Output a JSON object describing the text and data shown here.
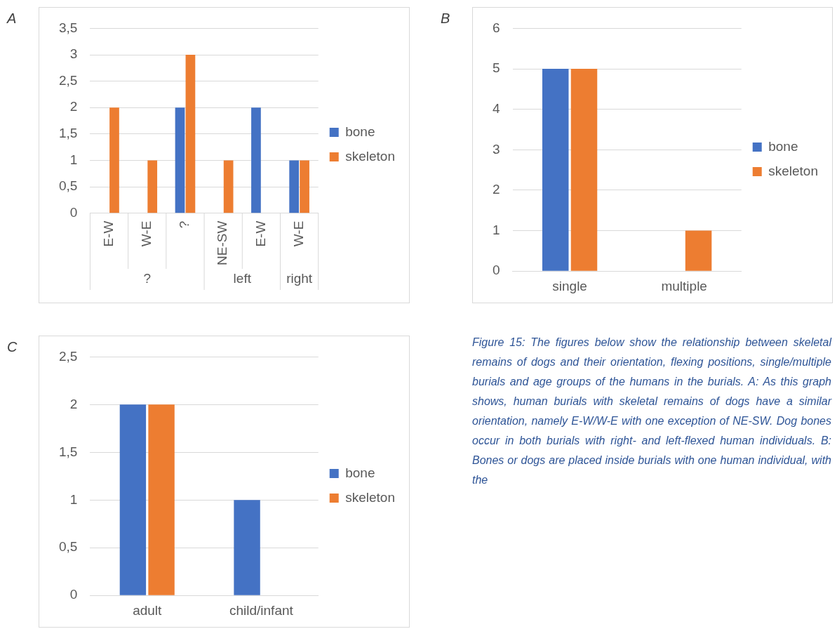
{
  "chart_data": [
    {
      "type": "bar",
      "title": "A",
      "categories": [
        "E-W",
        "W-E",
        "?",
        "NE-SW",
        "E-W",
        "W-E"
      ],
      "series": [
        {
          "name": "bone",
          "color": "#4472c4",
          "values": [
            null,
            null,
            2,
            null,
            2,
            1
          ]
        },
        {
          "name": "skeleton",
          "color": "#ed7d31",
          "values": [
            2,
            1,
            3,
            1,
            null,
            1
          ]
        }
      ],
      "ylim": [
        0,
        3.5
      ],
      "yticks": [
        0,
        {
          "value": 0.5,
          "label": "0,5"
        },
        1,
        {
          "value": 1.5,
          "label": "1,5"
        },
        2,
        {
          "value": 2.5,
          "label": "2,5"
        },
        3,
        {
          "value": 3.5,
          "label": "3,5"
        }
      ],
      "grid": "y",
      "legend": "right",
      "annotations": [
        "?",
        "left",
        "right"
      ]
    },
    {
      "type": "bar",
      "title": "B",
      "categories": [
        "single",
        "multiple"
      ],
      "series": [
        {
          "name": "bone",
          "color": "#4472c4",
          "values": [
            5,
            null
          ]
        },
        {
          "name": "skeleton",
          "color": "#ed7d31",
          "values": [
            5,
            1
          ]
        }
      ],
      "ylim": [
        0,
        6
      ],
      "yticks": [
        0,
        1,
        2,
        3,
        4,
        5,
        6
      ],
      "grid": "y",
      "legend": "right"
    },
    {
      "type": "bar",
      "title": "C",
      "categories": [
        "adult",
        "child/infant"
      ],
      "series": [
        {
          "name": "bone",
          "color": "#4472c4",
          "values": [
            2,
            1
          ]
        },
        {
          "name": "skeleton",
          "color": "#ed7d31",
          "values": [
            2,
            null
          ]
        }
      ],
      "ylim": [
        0,
        2.5
      ],
      "yticks": [
        0,
        {
          "value": 0.5,
          "label": "0,5"
        },
        1,
        {
          "value": 1.5,
          "label": "1,5"
        },
        2,
        {
          "value": 2.5,
          "label": "2,5"
        }
      ],
      "grid": "y",
      "legend": "right"
    },
    {
      "type": "other",
      "annotations": [
        "Figure 15: The figures below show the relationship between skeletal remains of dogs and their orientation, flexing positions, single/multiple burials and age groups of the humans in the burials. A: As this graph shows, human burials with skeletal remains of dogs have a similar orientation, namely E-W/W-E with one exception of NE-SW. Dog bones occur in both burials with right- and left-flexed human individuals. B: Bones or dogs are placed inside burials with one human individual, with the"
      ]
    }
  ]
}
